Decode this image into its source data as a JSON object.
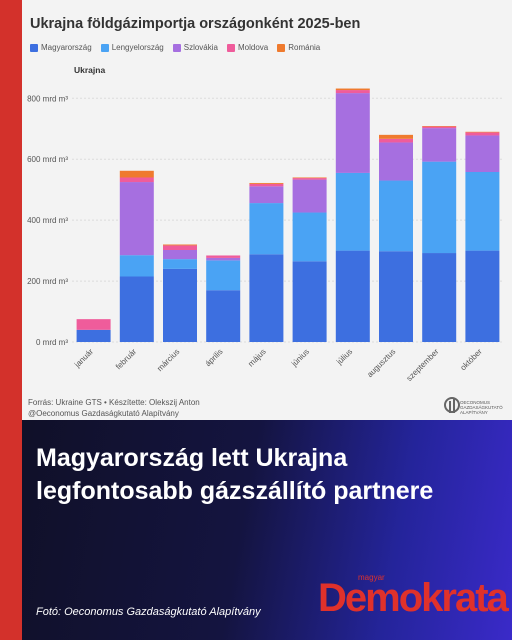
{
  "title": "Ukrajna földgázimportja országonként 2025-ben",
  "subtitle": "Ukrajna",
  "legend": [
    {
      "label": "Magyarország",
      "color": "#3d6fe0"
    },
    {
      "label": "Lengyelország",
      "color": "#4aa3f4"
    },
    {
      "label": "Szlovákia",
      "color": "#a66fe0"
    },
    {
      "label": "Moldova",
      "color": "#ef5c9b"
    },
    {
      "label": "Románia",
      "color": "#ef7a2e"
    }
  ],
  "source_line1": "Forrás: Ukraine GTS • Készítette: Olekszij Anton",
  "source_line2": "@Oeconomus Gazdaságkutató Alapítvány",
  "logo_text": [
    "OECONOMUS",
    "GAZDASÁGKUTATÓ",
    "ALAPÍTVÁNY"
  ],
  "headline": "Magyarország lett Ukrajna legfontosabb gázszállító partnere",
  "photo_credit": "Fotó: Oeconomus Gazdaságkutató Alapítvány",
  "brand_small": "magyar",
  "brand": "Demokrata",
  "chart_data": {
    "type": "bar",
    "stacked": true,
    "categories": [
      "január",
      "február",
      "március",
      "április",
      "május",
      "június",
      "július",
      "augusztus",
      "szeptember",
      "október"
    ],
    "series": [
      {
        "name": "Magyarország",
        "color": "#3d6fe0",
        "values": [
          40,
          215,
          240,
          170,
          288,
          265,
          300,
          298,
          292,
          300
        ]
      },
      {
        "name": "Lengyelország",
        "color": "#4aa3f4",
        "values": [
          0,
          70,
          32,
          98,
          168,
          160,
          255,
          232,
          300,
          258
        ]
      },
      {
        "name": "Szlovákia",
        "color": "#a66fe0",
        "values": [
          0,
          240,
          30,
          8,
          55,
          108,
          262,
          125,
          110,
          120
        ]
      },
      {
        "name": "Moldova",
        "color": "#ef5c9b",
        "values": [
          35,
          15,
          15,
          8,
          8,
          5,
          10,
          12,
          5,
          10
        ]
      },
      {
        "name": "Románia",
        "color": "#ef7a2e",
        "values": [
          0,
          22,
          3,
          0,
          3,
          2,
          5,
          13,
          2,
          2
        ]
      }
    ],
    "ytick_labels": [
      "0 mrd m³",
      "200 mrd m³",
      "400 mrd m³",
      "600 mrd m³",
      "800 mrd m³"
    ],
    "yticks": [
      0,
      200,
      400,
      600,
      800
    ],
    "ylim": [
      0,
      860
    ],
    "grid": true,
    "legend_position": "top-left"
  }
}
